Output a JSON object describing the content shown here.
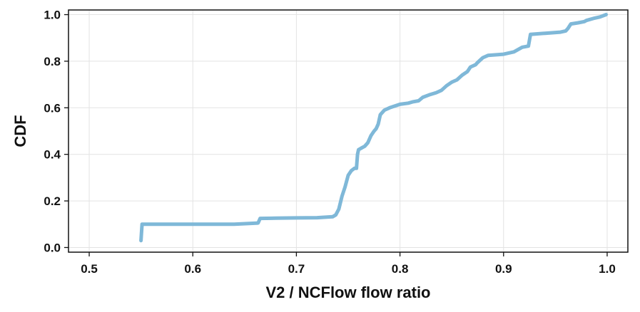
{
  "chart_data": {
    "type": "line",
    "title": "",
    "xlabel": "V2 / NCFlow flow ratio",
    "ylabel": "CDF",
    "xlim": [
      0.48,
      1.02
    ],
    "ylim": [
      -0.02,
      1.02
    ],
    "xticks": [
      0.5,
      0.6,
      0.7,
      0.8,
      0.9,
      1.0
    ],
    "xtick_labels": [
      "0.5",
      "0.6",
      "0.7",
      "0.8",
      "0.9",
      "1.0"
    ],
    "yticks": [
      0.0,
      0.2,
      0.4,
      0.6,
      0.8,
      1.0
    ],
    "ytick_labels": [
      "0.0",
      "0.2",
      "0.4",
      "0.6",
      "0.8",
      "1.0"
    ],
    "grid": true,
    "legend": "none",
    "series": [
      {
        "color": "#7fb8d8",
        "x": [
          0.55,
          0.551,
          0.56,
          0.6,
          0.64,
          0.663,
          0.665,
          0.68,
          0.7,
          0.72,
          0.735,
          0.738,
          0.741,
          0.744,
          0.747,
          0.75,
          0.753,
          0.756,
          0.758,
          0.759,
          0.76,
          0.762,
          0.766,
          0.769,
          0.772,
          0.775,
          0.777,
          0.779,
          0.781,
          0.785,
          0.79,
          0.8,
          0.808,
          0.812,
          0.818,
          0.822,
          0.828,
          0.835,
          0.84,
          0.845,
          0.85,
          0.855,
          0.86,
          0.865,
          0.868,
          0.873,
          0.875,
          0.88,
          0.885,
          0.9,
          0.91,
          0.918,
          0.924,
          0.926,
          0.94,
          0.955,
          0.96,
          0.962,
          0.965,
          0.972,
          0.978,
          0.98,
          0.988,
          0.993,
          0.999
        ],
        "y": [
          0.03,
          0.1,
          0.1,
          0.1,
          0.1,
          0.105,
          0.125,
          0.126,
          0.127,
          0.128,
          0.132,
          0.14,
          0.165,
          0.22,
          0.26,
          0.31,
          0.33,
          0.34,
          0.34,
          0.4,
          0.42,
          0.425,
          0.435,
          0.45,
          0.48,
          0.5,
          0.51,
          0.53,
          0.57,
          0.59,
          0.6,
          0.615,
          0.62,
          0.625,
          0.63,
          0.645,
          0.655,
          0.665,
          0.675,
          0.695,
          0.71,
          0.72,
          0.74,
          0.755,
          0.775,
          0.785,
          0.795,
          0.815,
          0.825,
          0.83,
          0.84,
          0.86,
          0.865,
          0.915,
          0.92,
          0.925,
          0.93,
          0.94,
          0.96,
          0.965,
          0.97,
          0.975,
          0.985,
          0.99,
          1.0
        ]
      }
    ]
  }
}
